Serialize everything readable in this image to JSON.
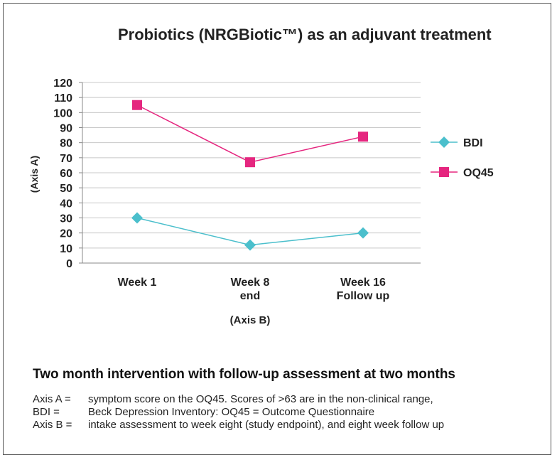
{
  "title": "Probiotics (NRGBiotic™) as an adjuvant treatment",
  "chart_data": {
    "type": "line",
    "categories": [
      [
        "Week 1"
      ],
      [
        "Week 8",
        "end"
      ],
      [
        "Week 16",
        "Follow up"
      ]
    ],
    "series": [
      {
        "name": "BDI",
        "values": [
          30,
          12,
          20
        ],
        "color": "#4bbfcc",
        "marker": "diamond"
      },
      {
        "name": "OQ45",
        "values": [
          105,
          67,
          84
        ],
        "color": "#e5267f",
        "marker": "square"
      }
    ],
    "ylabel": "(Axis A)",
    "xlabel": "(Axis B)",
    "ylim": [
      0,
      120
    ],
    "yticks": [
      0,
      10,
      20,
      30,
      40,
      50,
      60,
      70,
      80,
      90,
      100,
      110,
      120
    ],
    "grid": true,
    "legend": "right"
  },
  "subtitle": "Two month intervention with follow-up assessment at two months",
  "notes": [
    {
      "key": "Axis A =",
      "text": "symptom score on the OQ45. Scores of >63 are in the non-clinical range,"
    },
    {
      "key": "BDI =",
      "text": "Beck Depression Inventory: OQ45 = Outcome Questionnaire"
    },
    {
      "key": "Axis B =",
      "text": "intake assessment to week eight (study endpoint), and eight week follow up"
    }
  ]
}
